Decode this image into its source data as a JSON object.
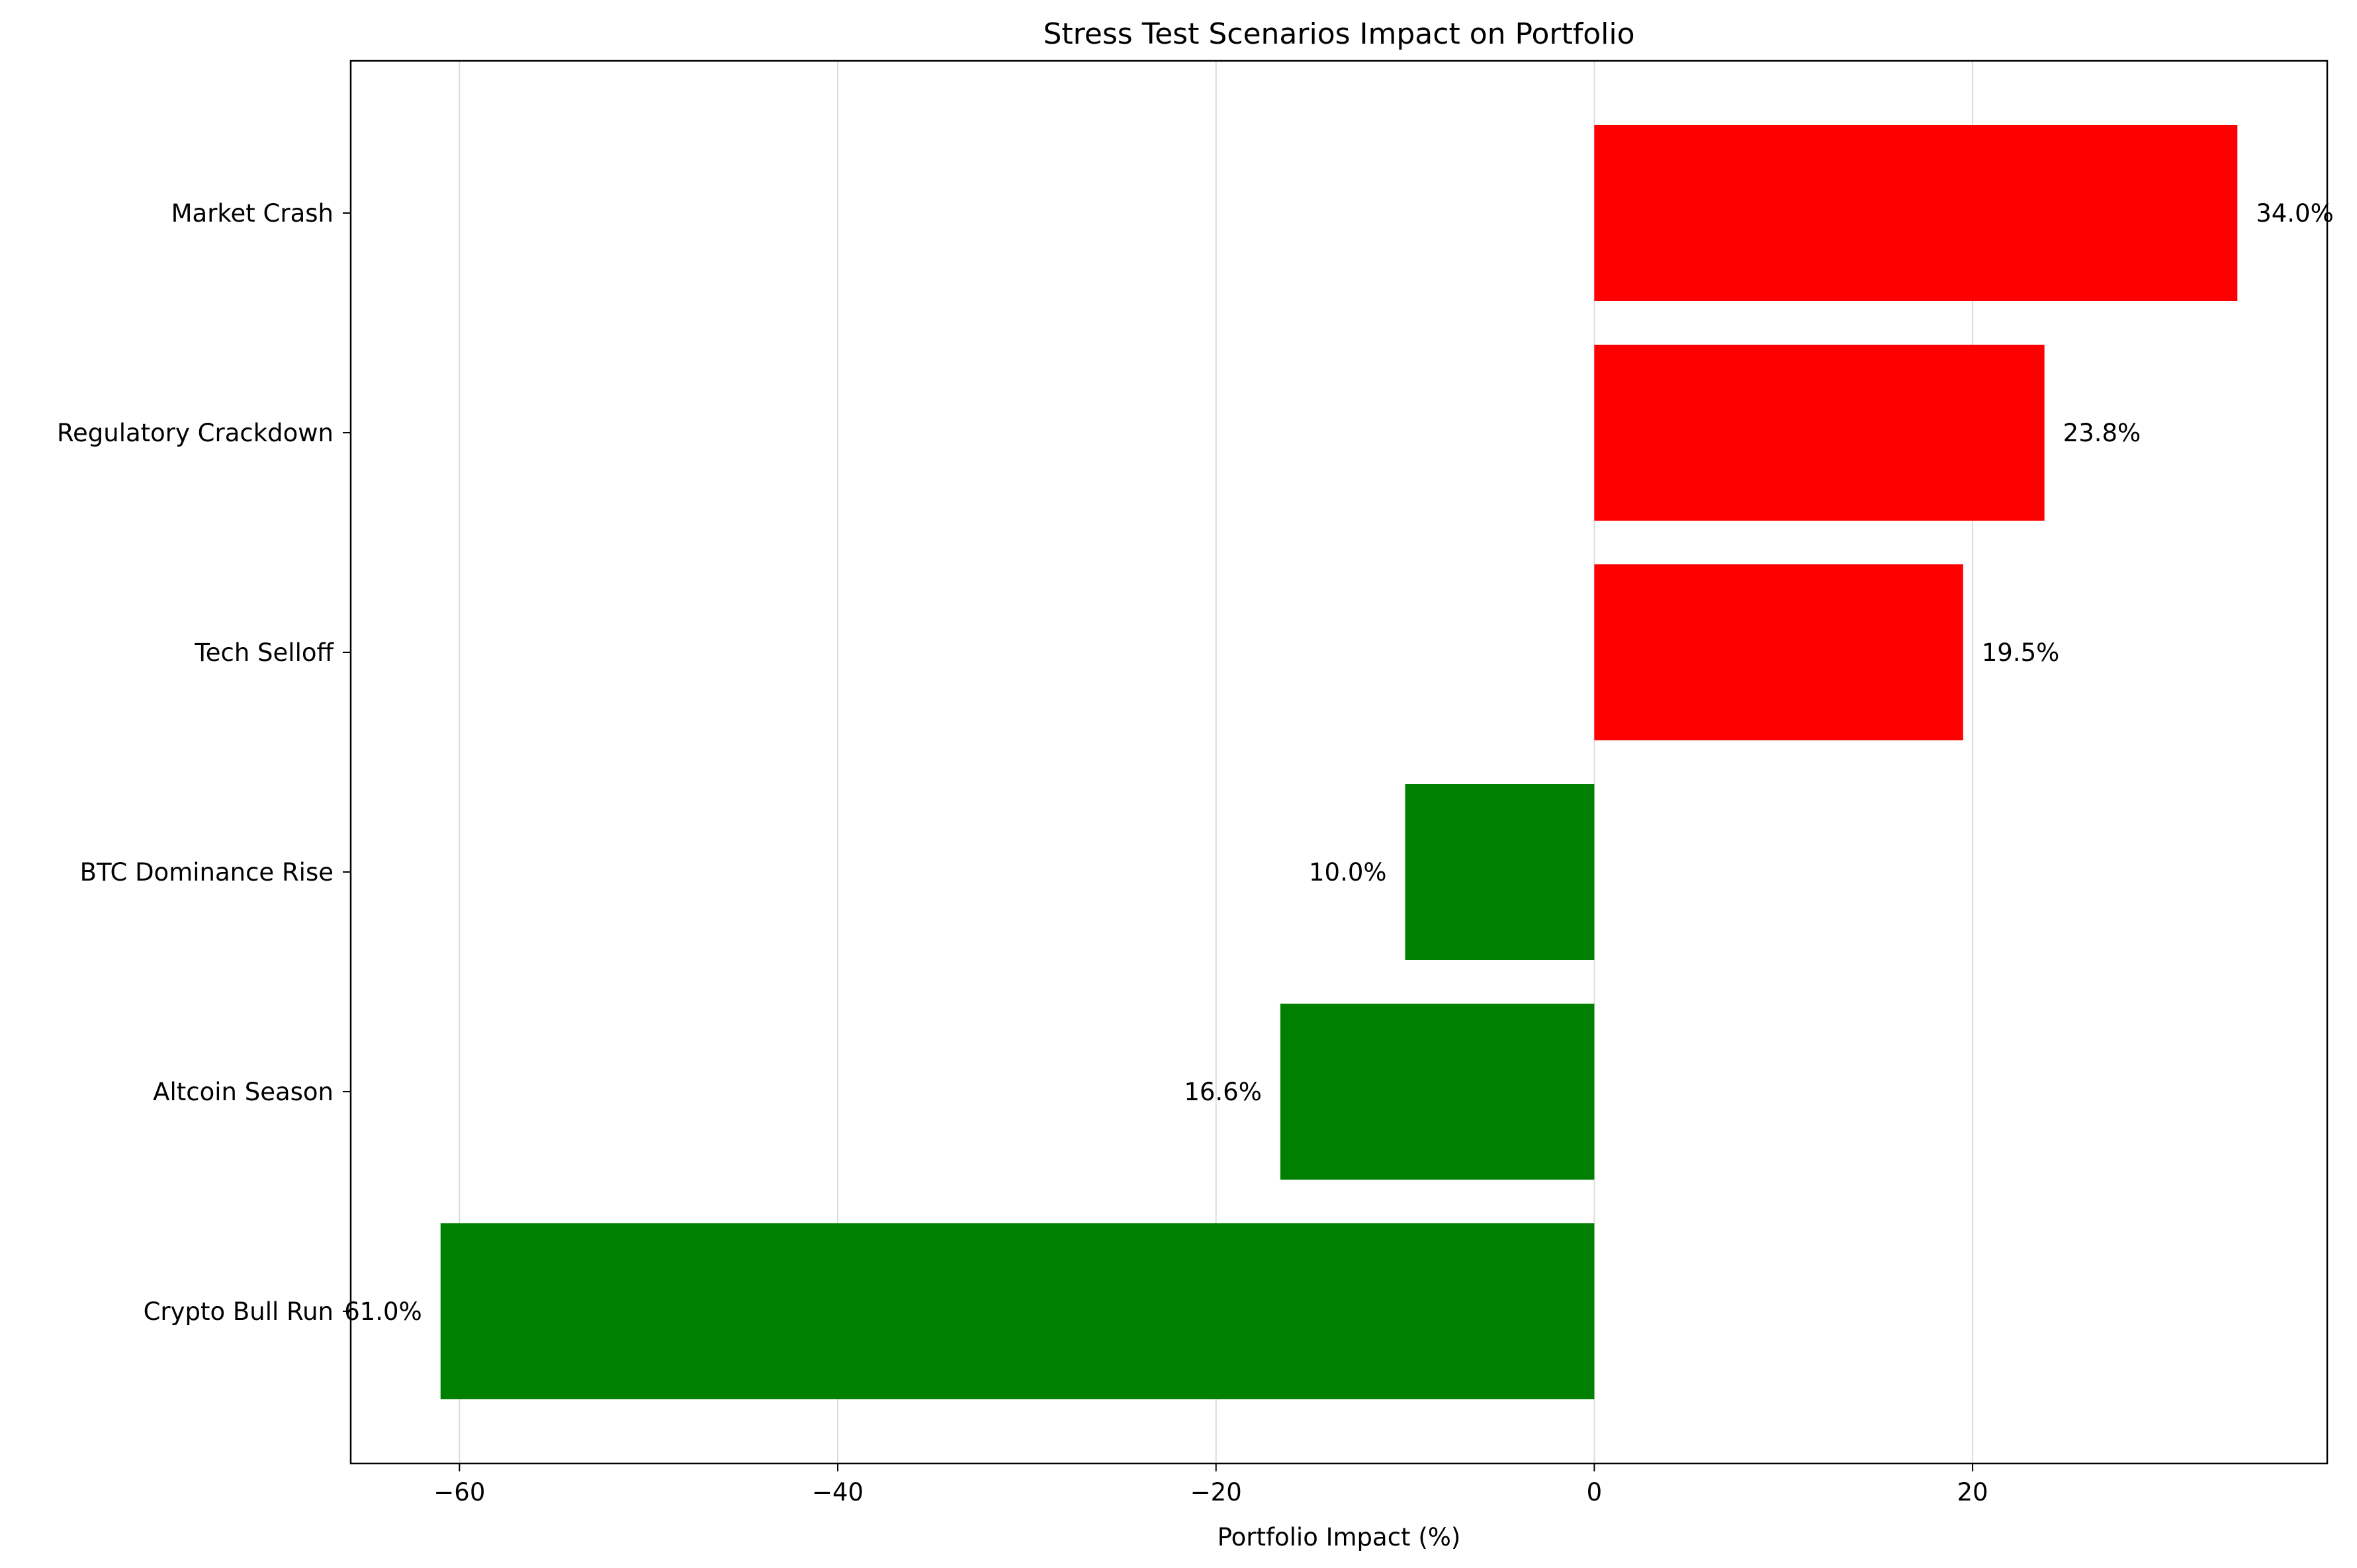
{
  "chart_data": {
    "type": "bar",
    "orientation": "horizontal",
    "title": "Stress Test Scenarios Impact on Portfolio",
    "xlabel": "Portfolio Impact (%)",
    "ylabel": "",
    "categories": [
      "Market Crash",
      "Regulatory Crackdown",
      "Tech Selloff",
      "BTC Dominance Rise",
      "Altcoin Season",
      "Crypto Bull Run"
    ],
    "values": [
      34.0,
      23.8,
      19.5,
      -10.0,
      -16.6,
      -61.0
    ],
    "value_labels": [
      "34.0%",
      "23.8%",
      "19.5%",
      "10.0%",
      "16.6%",
      "61.0%"
    ],
    "bar_colors": [
      "#ff0000",
      "#ff0000",
      "#ff0000",
      "#008000",
      "#008000",
      "#008000"
    ],
    "xlim": [
      -65.75,
      38.75
    ],
    "xticks": [
      -60,
      -40,
      -20,
      0,
      20
    ],
    "xtick_labels": [
      "−60",
      "−40",
      "−20",
      "0",
      "20"
    ],
    "grid": "vertical",
    "legend": "none"
  }
}
